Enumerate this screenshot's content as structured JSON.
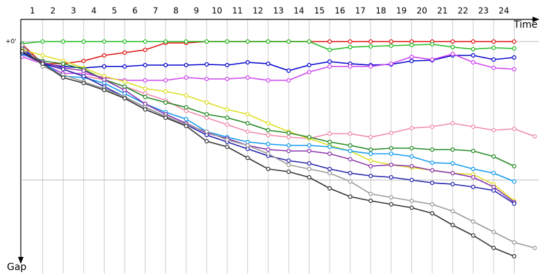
{
  "chart_data": {
    "type": "line",
    "x_label": "Time",
    "y_label": "Gap",
    "xlim": [
      0,
      25.2
    ],
    "xticks": [
      {
        "value": 1,
        "label": "1"
      },
      {
        "value": 2,
        "label": "2"
      },
      {
        "value": 3,
        "label": "3"
      },
      {
        "value": 4,
        "label": "4"
      },
      {
        "value": 5,
        "label": "5"
      },
      {
        "value": 6,
        "label": "6"
      },
      {
        "value": 7,
        "label": "7"
      },
      {
        "value": 8,
        "label": "8"
      },
      {
        "value": 9,
        "label": "9"
      },
      {
        "value": 10,
        "label": "10"
      },
      {
        "value": 11,
        "label": "11"
      },
      {
        "value": 12,
        "label": "12"
      },
      {
        "value": 13,
        "label": "13"
      },
      {
        "value": 14,
        "label": "14"
      },
      {
        "value": 15,
        "label": "15"
      },
      {
        "value": 16,
        "label": "16"
      },
      {
        "value": 17,
        "label": "17"
      },
      {
        "value": 18,
        "label": "18"
      },
      {
        "value": 19,
        "label": "19"
      },
      {
        "value": 20,
        "label": "20"
      },
      {
        "value": 21,
        "label": "21"
      },
      {
        "value": 22,
        "label": "22"
      },
      {
        "value": 23,
        "label": "23"
      },
      {
        "value": 24,
        "label": "24"
      }
    ],
    "ylim": [
      -16,
      165
    ],
    "y_inverted": true,
    "yticks": [
      {
        "value": 0,
        "label": "+0'"
      }
    ],
    "ygrid": [
      0,
      100
    ],
    "grid": true,
    "series": [
      {
        "name": "red",
        "color": "#e01010",
        "values": [
          2,
          16,
          16,
          14,
          10,
          8,
          6,
          1,
          1,
          0,
          0,
          0,
          0,
          0,
          0,
          0,
          0,
          0,
          0,
          0,
          0,
          0,
          0,
          0,
          0
        ]
      },
      {
        "name": "green",
        "color": "#22bb22",
        "values": [
          1.5,
          0,
          0,
          0,
          0,
          0,
          0,
          0,
          0,
          0,
          0,
          0,
          0,
          0,
          0,
          6,
          4,
          3.5,
          3,
          2.5,
          2,
          4,
          5.5,
          4.5,
          5
        ]
      },
      {
        "name": "blue",
        "color": "#0000cc",
        "values": [
          5,
          16,
          18,
          19,
          18,
          18,
          17,
          17,
          17,
          16.5,
          17,
          15,
          16,
          21,
          17,
          14.5,
          16,
          17,
          16.5,
          14,
          13.5,
          10,
          10,
          13,
          11.5
        ]
      },
      {
        "name": "violet",
        "color": "#cc44ee",
        "values": [
          11,
          16,
          23,
          23,
          26,
          28,
          28,
          28,
          26,
          27,
          27,
          26,
          28,
          28,
          22,
          18,
          18,
          18,
          16,
          11,
          13,
          9,
          15,
          19,
          20
        ]
      },
      {
        "name": "pink",
        "color": "#f08aaa",
        "values": [
          9,
          16,
          20,
          25,
          27.5,
          32.5,
          37.5,
          42.5,
          50,
          55,
          60,
          65,
          67.5,
          69,
          70,
          66.5,
          66.5,
          69,
          66,
          62.5,
          61.5,
          59,
          61.5,
          64,
          63,
          68.5
        ]
      },
      {
        "name": "yellow",
        "color": "#dddd22",
        "values": [
          6,
          10,
          14,
          19,
          25,
          29,
          34,
          36,
          39,
          44,
          49,
          52.5,
          59,
          65,
          70,
          75,
          79,
          86,
          89,
          91,
          93,
          95,
          96,
          103,
          115
        ]
      },
      {
        "name": "dark-green",
        "color": "#228822",
        "values": [
          7.5,
          14,
          16,
          20,
          27.5,
          32.5,
          40,
          44,
          47.5,
          52.5,
          55,
          59,
          64,
          66,
          69,
          72.5,
          75,
          78,
          77,
          77,
          78,
          78,
          79,
          83,
          90
        ]
      },
      {
        "name": "light-blue",
        "color": "#1199ee",
        "values": [
          9,
          15,
          25,
          26,
          30,
          37.5,
          45,
          51,
          56,
          65,
          69,
          72.5,
          74,
          75,
          75,
          76,
          79,
          81,
          81,
          83,
          87.5,
          88,
          92,
          95,
          101
        ]
      },
      {
        "name": "purple",
        "color": "#8833aa",
        "values": [
          7,
          15,
          19,
          21,
          27.5,
          35,
          45,
          52.5,
          59,
          66,
          70,
          75,
          78,
          79,
          79,
          81,
          85,
          90,
          89,
          90,
          93,
          95,
          98,
          105,
          116
        ]
      },
      {
        "name": "navy",
        "color": "#2222aa",
        "values": [
          8,
          16,
          20,
          25,
          32.5,
          40,
          47.5,
          54,
          60,
          67.5,
          72.5,
          77.5,
          82.5,
          86,
          88,
          92,
          95,
          97,
          98,
          100,
          102,
          103,
          105,
          107.5,
          117
        ]
      },
      {
        "name": "gray",
        "color": "#999999",
        "values": [
          2.5,
          18,
          24,
          29,
          34,
          40,
          47.5,
          54,
          60,
          65,
          71,
          75,
          81,
          89,
          92,
          95,
          101,
          110,
          112.5,
          115,
          117.5,
          122.5,
          130,
          137.5,
          145,
          149
        ]
      },
      {
        "name": "black",
        "color": "#333333",
        "values": [
          7,
          16,
          26,
          30,
          35,
          41,
          49,
          55,
          61,
          72,
          76,
          84,
          92,
          94,
          98,
          106,
          112,
          115,
          117.5,
          120,
          124,
          132.5,
          140,
          149,
          155
        ]
      }
    ]
  }
}
